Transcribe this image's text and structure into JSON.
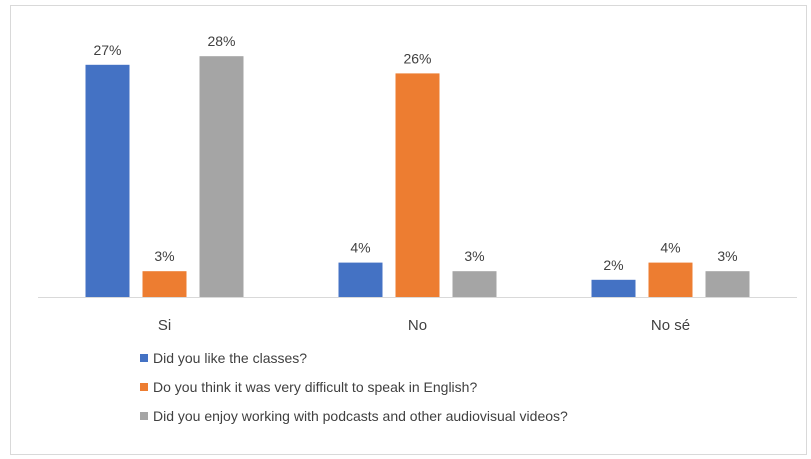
{
  "chart_data": {
    "type": "bar",
    "categories": [
      "Si",
      "No",
      "No sé"
    ],
    "series": [
      {
        "name": "Did you like the classes?",
        "color": "#4472C4",
        "values": [
          27,
          4,
          2
        ],
        "labels": [
          "27%",
          "4%",
          "2%"
        ]
      },
      {
        "name": "Do you think it was very difficult to speak in English?",
        "color": "#ED7D31",
        "values": [
          3,
          26,
          4
        ],
        "labels": [
          "3%",
          "26%",
          "4%"
        ]
      },
      {
        "name": "Did you enjoy working with podcasts and other audiovisual videos?",
        "color": "#A5A5A5",
        "values": [
          28,
          3,
          3
        ],
        "labels": [
          "28%",
          "3%",
          "3%"
        ]
      }
    ],
    "unit": "%",
    "ylim": [
      0,
      30
    ],
    "grid": false,
    "legend_position": "bottom-left"
  }
}
